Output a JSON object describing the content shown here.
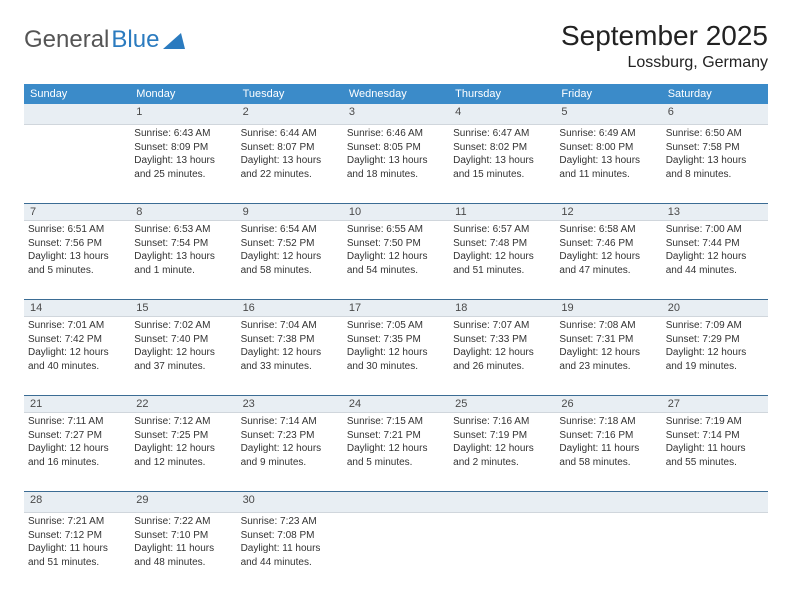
{
  "brand": {
    "part1": "General",
    "part2": "Blue"
  },
  "header": {
    "month": "September 2025",
    "location": "Lossburg, Germany"
  },
  "colors": {
    "header_bg": "#3b8bc9",
    "header_text": "#ffffff",
    "daynum_bg": "#e8eef3",
    "divider": "#3b6c94",
    "logo_blue": "#2b7bbf",
    "text": "#333333"
  },
  "dayNames": [
    "Sunday",
    "Monday",
    "Tuesday",
    "Wednesday",
    "Thursday",
    "Friday",
    "Saturday"
  ],
  "weeks": [
    [
      {
        "n": "",
        "lines": []
      },
      {
        "n": "1",
        "lines": [
          "Sunrise: 6:43 AM",
          "Sunset: 8:09 PM",
          "Daylight: 13 hours and 25 minutes."
        ]
      },
      {
        "n": "2",
        "lines": [
          "Sunrise: 6:44 AM",
          "Sunset: 8:07 PM",
          "Daylight: 13 hours and 22 minutes."
        ]
      },
      {
        "n": "3",
        "lines": [
          "Sunrise: 6:46 AM",
          "Sunset: 8:05 PM",
          "Daylight: 13 hours and 18 minutes."
        ]
      },
      {
        "n": "4",
        "lines": [
          "Sunrise: 6:47 AM",
          "Sunset: 8:02 PM",
          "Daylight: 13 hours and 15 minutes."
        ]
      },
      {
        "n": "5",
        "lines": [
          "Sunrise: 6:49 AM",
          "Sunset: 8:00 PM",
          "Daylight: 13 hours and 11 minutes."
        ]
      },
      {
        "n": "6",
        "lines": [
          "Sunrise: 6:50 AM",
          "Sunset: 7:58 PM",
          "Daylight: 13 hours and 8 minutes."
        ]
      }
    ],
    [
      {
        "n": "7",
        "lines": [
          "Sunrise: 6:51 AM",
          "Sunset: 7:56 PM",
          "Daylight: 13 hours and 5 minutes."
        ]
      },
      {
        "n": "8",
        "lines": [
          "Sunrise: 6:53 AM",
          "Sunset: 7:54 PM",
          "Daylight: 13 hours and 1 minute."
        ]
      },
      {
        "n": "9",
        "lines": [
          "Sunrise: 6:54 AM",
          "Sunset: 7:52 PM",
          "Daylight: 12 hours and 58 minutes."
        ]
      },
      {
        "n": "10",
        "lines": [
          "Sunrise: 6:55 AM",
          "Sunset: 7:50 PM",
          "Daylight: 12 hours and 54 minutes."
        ]
      },
      {
        "n": "11",
        "lines": [
          "Sunrise: 6:57 AM",
          "Sunset: 7:48 PM",
          "Daylight: 12 hours and 51 minutes."
        ]
      },
      {
        "n": "12",
        "lines": [
          "Sunrise: 6:58 AM",
          "Sunset: 7:46 PM",
          "Daylight: 12 hours and 47 minutes."
        ]
      },
      {
        "n": "13",
        "lines": [
          "Sunrise: 7:00 AM",
          "Sunset: 7:44 PM",
          "Daylight: 12 hours and 44 minutes."
        ]
      }
    ],
    [
      {
        "n": "14",
        "lines": [
          "Sunrise: 7:01 AM",
          "Sunset: 7:42 PM",
          "Daylight: 12 hours and 40 minutes."
        ]
      },
      {
        "n": "15",
        "lines": [
          "Sunrise: 7:02 AM",
          "Sunset: 7:40 PM",
          "Daylight: 12 hours and 37 minutes."
        ]
      },
      {
        "n": "16",
        "lines": [
          "Sunrise: 7:04 AM",
          "Sunset: 7:38 PM",
          "Daylight: 12 hours and 33 minutes."
        ]
      },
      {
        "n": "17",
        "lines": [
          "Sunrise: 7:05 AM",
          "Sunset: 7:35 PM",
          "Daylight: 12 hours and 30 minutes."
        ]
      },
      {
        "n": "18",
        "lines": [
          "Sunrise: 7:07 AM",
          "Sunset: 7:33 PM",
          "Daylight: 12 hours and 26 minutes."
        ]
      },
      {
        "n": "19",
        "lines": [
          "Sunrise: 7:08 AM",
          "Sunset: 7:31 PM",
          "Daylight: 12 hours and 23 minutes."
        ]
      },
      {
        "n": "20",
        "lines": [
          "Sunrise: 7:09 AM",
          "Sunset: 7:29 PM",
          "Daylight: 12 hours and 19 minutes."
        ]
      }
    ],
    [
      {
        "n": "21",
        "lines": [
          "Sunrise: 7:11 AM",
          "Sunset: 7:27 PM",
          "Daylight: 12 hours and 16 minutes."
        ]
      },
      {
        "n": "22",
        "lines": [
          "Sunrise: 7:12 AM",
          "Sunset: 7:25 PM",
          "Daylight: 12 hours and 12 minutes."
        ]
      },
      {
        "n": "23",
        "lines": [
          "Sunrise: 7:14 AM",
          "Sunset: 7:23 PM",
          "Daylight: 12 hours and 9 minutes."
        ]
      },
      {
        "n": "24",
        "lines": [
          "Sunrise: 7:15 AM",
          "Sunset: 7:21 PM",
          "Daylight: 12 hours and 5 minutes."
        ]
      },
      {
        "n": "25",
        "lines": [
          "Sunrise: 7:16 AM",
          "Sunset: 7:19 PM",
          "Daylight: 12 hours and 2 minutes."
        ]
      },
      {
        "n": "26",
        "lines": [
          "Sunrise: 7:18 AM",
          "Sunset: 7:16 PM",
          "Daylight: 11 hours and 58 minutes."
        ]
      },
      {
        "n": "27",
        "lines": [
          "Sunrise: 7:19 AM",
          "Sunset: 7:14 PM",
          "Daylight: 11 hours and 55 minutes."
        ]
      }
    ],
    [
      {
        "n": "28",
        "lines": [
          "Sunrise: 7:21 AM",
          "Sunset: 7:12 PM",
          "Daylight: 11 hours and 51 minutes."
        ]
      },
      {
        "n": "29",
        "lines": [
          "Sunrise: 7:22 AM",
          "Sunset: 7:10 PM",
          "Daylight: 11 hours and 48 minutes."
        ]
      },
      {
        "n": "30",
        "lines": [
          "Sunrise: 7:23 AM",
          "Sunset: 7:08 PM",
          "Daylight: 11 hours and 44 minutes."
        ]
      },
      {
        "n": "",
        "lines": []
      },
      {
        "n": "",
        "lines": []
      },
      {
        "n": "",
        "lines": []
      },
      {
        "n": "",
        "lines": []
      }
    ]
  ]
}
